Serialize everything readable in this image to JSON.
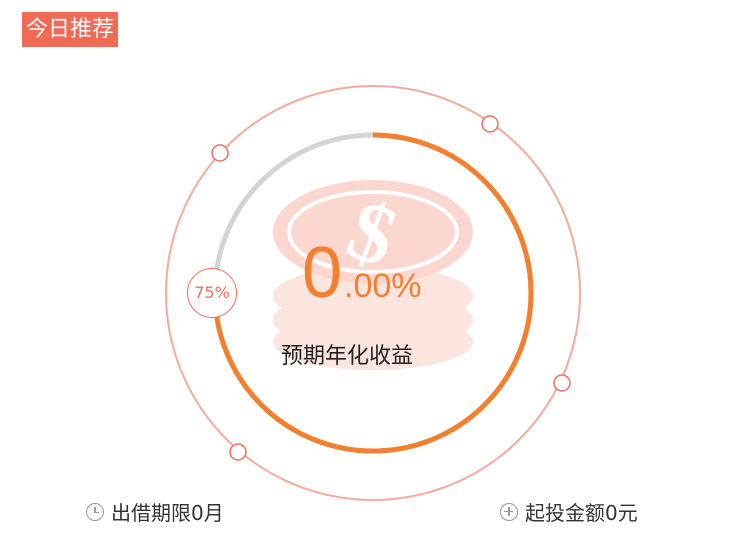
{
  "header": {
    "badge": "今日推荐"
  },
  "product": {
    "progress_label": "75%",
    "rate_whole": "0",
    "rate_fraction": ".00%",
    "rate_caption": "预期年化收益",
    "term": "出借期限0月",
    "min_invest": "起投金额0元"
  },
  "icons": {
    "term": "clock-icon",
    "min_invest": "plus-circle-icon",
    "watermark": "coin-stack-icon"
  },
  "progress": {
    "fraction": 0.75
  },
  "colors": {
    "accent": "#f26a56",
    "progress": "#f47f2e",
    "track": "#d4d4d4",
    "outer_ring": "#f5aa9e"
  }
}
